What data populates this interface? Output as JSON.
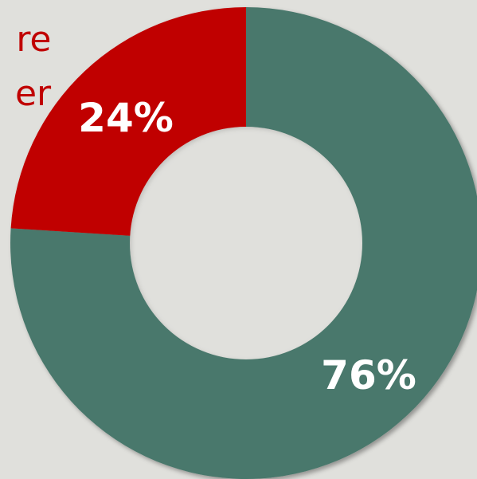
{
  "chart_data": {
    "type": "pie",
    "donut": true,
    "slices": [
      {
        "label": "76%",
        "value": 76,
        "color": "#4a786c"
      },
      {
        "label": "24%",
        "value": 24,
        "color": "#c00000"
      }
    ],
    "background": "#e0e0dc",
    "hole_color": "#e0e0dc"
  },
  "partial_text": {
    "line1": "re",
    "line2": "er"
  }
}
